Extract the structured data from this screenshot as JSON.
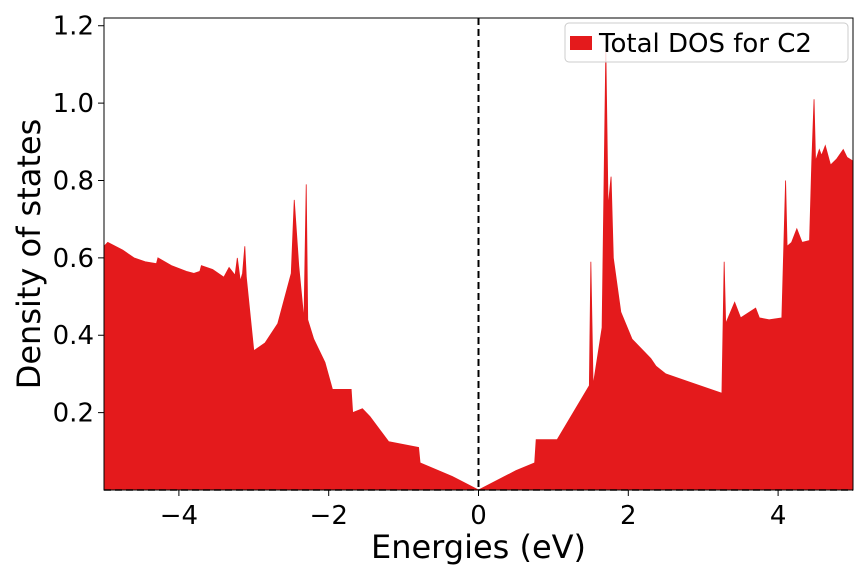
{
  "chart_data": {
    "type": "area",
    "xlabel": "Energies (eV)",
    "ylabel": "Density of states",
    "xlim": [
      -5,
      5
    ],
    "ylim": [
      0,
      1.22
    ],
    "x_ticks": [
      -4,
      -2,
      0,
      2,
      4
    ],
    "x_tick_labels": [
      "−4",
      "−2",
      "0",
      "2",
      "4"
    ],
    "y_ticks": [
      0.2,
      0.4,
      0.6,
      0.8,
      1.0,
      1.2
    ],
    "y_tick_labels": [
      "0.2",
      "0.4",
      "0.6",
      "0.8",
      "1.0",
      "1.2"
    ],
    "vline_x": 0,
    "hline_y": 0,
    "grid": false,
    "legend_position": "top-right",
    "series": [
      {
        "name": "Total DOS for C2",
        "color": "#e41a1c",
        "points": [
          [
            -5.0,
            0.63
          ],
          [
            -4.95,
            0.64
          ],
          [
            -4.85,
            0.63
          ],
          [
            -4.75,
            0.62
          ],
          [
            -4.6,
            0.6
          ],
          [
            -4.45,
            0.59
          ],
          [
            -4.3,
            0.585
          ],
          [
            -4.28,
            0.6
          ],
          [
            -4.1,
            0.58
          ],
          [
            -3.9,
            0.565
          ],
          [
            -3.8,
            0.56
          ],
          [
            -3.72,
            0.565
          ],
          [
            -3.7,
            0.58
          ],
          [
            -3.55,
            0.57
          ],
          [
            -3.4,
            0.55
          ],
          [
            -3.33,
            0.575
          ],
          [
            -3.25,
            0.555
          ],
          [
            -3.22,
            0.6
          ],
          [
            -3.18,
            0.54
          ],
          [
            -3.15,
            0.56
          ],
          [
            -3.12,
            0.63
          ],
          [
            -3.1,
            0.55
          ],
          [
            -3.0,
            0.36
          ],
          [
            -2.85,
            0.38
          ],
          [
            -2.68,
            0.43
          ],
          [
            -2.5,
            0.56
          ],
          [
            -2.46,
            0.75
          ],
          [
            -2.4,
            0.58
          ],
          [
            -2.33,
            0.44
          ],
          [
            -2.3,
            0.79
          ],
          [
            -2.28,
            0.44
          ],
          [
            -2.2,
            0.39
          ],
          [
            -2.05,
            0.33
          ],
          [
            -1.95,
            0.26
          ],
          [
            -1.7,
            0.26
          ],
          [
            -1.68,
            0.2
          ],
          [
            -1.55,
            0.21
          ],
          [
            -1.45,
            0.19
          ],
          [
            -1.2,
            0.125
          ],
          [
            -0.8,
            0.11
          ],
          [
            -0.78,
            0.07
          ],
          [
            -0.35,
            0.035
          ],
          [
            0.0,
            0.0
          ],
          [
            0.5,
            0.05
          ],
          [
            0.75,
            0.07
          ],
          [
            0.77,
            0.13
          ],
          [
            1.05,
            0.13
          ],
          [
            1.48,
            0.27
          ],
          [
            1.5,
            0.59
          ],
          [
            1.53,
            0.27
          ],
          [
            1.65,
            0.42
          ],
          [
            1.7,
            1.14
          ],
          [
            1.73,
            0.73
          ],
          [
            1.77,
            0.81
          ],
          [
            1.8,
            0.6
          ],
          [
            1.9,
            0.46
          ],
          [
            2.05,
            0.39
          ],
          [
            2.3,
            0.34
          ],
          [
            2.37,
            0.32
          ],
          [
            2.5,
            0.3
          ],
          [
            3.25,
            0.25
          ],
          [
            3.28,
            0.59
          ],
          [
            3.3,
            0.43
          ],
          [
            3.42,
            0.485
          ],
          [
            3.5,
            0.445
          ],
          [
            3.7,
            0.47
          ],
          [
            3.75,
            0.445
          ],
          [
            3.88,
            0.44
          ],
          [
            4.05,
            0.445
          ],
          [
            4.1,
            0.8
          ],
          [
            4.12,
            0.63
          ],
          [
            4.18,
            0.64
          ],
          [
            4.25,
            0.675
          ],
          [
            4.32,
            0.64
          ],
          [
            4.42,
            0.645
          ],
          [
            4.45,
            0.85
          ],
          [
            4.48,
            1.01
          ],
          [
            4.5,
            0.85
          ],
          [
            4.55,
            0.88
          ],
          [
            4.58,
            0.865
          ],
          [
            4.63,
            0.89
          ],
          [
            4.7,
            0.84
          ],
          [
            4.78,
            0.855
          ],
          [
            4.87,
            0.88
          ],
          [
            4.92,
            0.86
          ],
          [
            5.0,
            0.85
          ]
        ]
      }
    ]
  }
}
